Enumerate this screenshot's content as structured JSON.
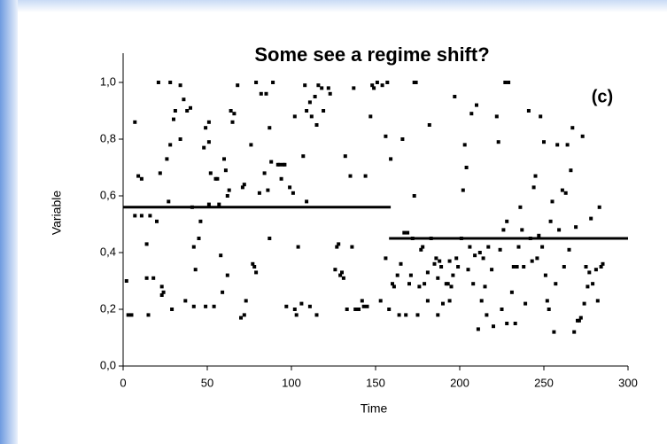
{
  "chart_data": {
    "type": "scatter",
    "title": "Some see a regime shift?",
    "annotation": "(c)",
    "x_label": "Time",
    "y_label": "Variable",
    "color": "#000000",
    "xlim": [
      0,
      300
    ],
    "ylim": [
      0,
      1.0
    ],
    "xticks": [
      0,
      50,
      100,
      150,
      200,
      250,
      300
    ],
    "yticks": [
      {
        "value": 0,
        "label": "0,0"
      },
      {
        "value": 0.2,
        "label": "0,2"
      },
      {
        "value": 0.4,
        "label": "0,4"
      },
      {
        "value": 0.6,
        "label": "0,6"
      },
      {
        "value": 0.8,
        "label": "0,8"
      },
      {
        "value": 1.0,
        "label": "1,0"
      }
    ],
    "regime_lines": [
      {
        "x": [
          0,
          159
        ],
        "y": [
          0.56,
          0.56
        ]
      },
      {
        "x": [
          158,
          300
        ],
        "y": [
          0.45,
          0.45
        ]
      }
    ],
    "x": [
      2,
      3,
      5,
      7,
      7,
      9,
      11,
      11,
      14,
      14,
      15,
      16,
      18,
      20,
      21,
      22,
      23,
      23,
      24,
      26,
      27,
      28,
      28,
      29,
      30,
      31,
      34,
      34,
      36,
      37,
      38,
      40,
      41,
      42,
      42,
      43,
      45,
      46,
      48,
      49,
      49,
      51,
      51,
      51,
      52,
      54,
      55,
      56,
      57,
      58,
      59,
      60,
      61,
      62,
      62,
      63,
      64,
      65,
      66,
      68,
      70,
      71,
      72,
      72,
      73,
      76,
      77,
      78,
      79,
      79,
      81,
      82,
      84,
      85,
      86,
      87,
      87,
      88,
      89,
      92,
      93,
      94,
      95,
      96,
      97,
      99,
      101,
      102,
      102,
      103,
      104,
      106,
      107,
      108,
      109,
      109,
      111,
      111,
      112,
      114,
      115,
      115,
      116,
      118,
      119,
      122,
      123,
      126,
      127,
      128,
      129,
      130,
      131,
      132,
      133,
      135,
      136,
      137,
      138,
      140,
      142,
      143,
      144,
      145,
      147,
      148,
      149,
      151,
      153,
      154,
      156,
      156,
      157,
      158,
      159,
      160,
      161,
      163,
      164,
      165,
      166,
      167,
      168,
      169,
      170,
      171,
      172,
      173,
      173,
      174,
      175,
      176,
      177,
      178,
      179,
      181,
      181,
      182,
      183,
      185,
      186,
      187,
      187,
      188,
      189,
      190,
      192,
      193,
      194,
      194,
      195,
      196,
      197,
      198,
      199,
      201,
      202,
      203,
      204,
      205,
      206,
      207,
      208,
      209,
      210,
      211,
      212,
      213,
      214,
      215,
      216,
      217,
      219,
      220,
      222,
      223,
      224,
      225,
      226,
      227,
      228,
      228,
      229,
      231,
      232,
      233,
      234,
      235,
      236,
      237,
      238,
      239,
      241,
      242,
      243,
      244,
      245,
      246,
      247,
      248,
      249,
      250,
      251,
      252,
      253,
      254,
      255,
      256,
      257,
      258,
      259,
      261,
      262,
      263,
      264,
      265,
      266,
      267,
      268,
      269,
      270,
      271,
      272,
      273,
      274,
      275,
      276,
      277,
      278,
      279,
      281,
      282,
      283,
      284,
      285
    ],
    "values": [
      0.3,
      0.18,
      0.18,
      0.53,
      0.86,
      0.67,
      0.66,
      0.53,
      0.31,
      0.43,
      0.18,
      0.53,
      0.31,
      0.51,
      1.0,
      0.68,
      0.28,
      0.25,
      0.26,
      0.73,
      0.58,
      1.0,
      0.78,
      0.2,
      0.87,
      0.9,
      0.99,
      0.8,
      0.94,
      0.23,
      0.9,
      0.91,
      0.56,
      0.42,
      0.21,
      0.34,
      0.45,
      0.51,
      0.77,
      0.21,
      0.84,
      0.86,
      0.57,
      0.79,
      0.68,
      0.21,
      0.66,
      0.66,
      0.57,
      0.39,
      0.26,
      0.73,
      0.69,
      0.32,
      0.6,
      0.62,
      0.9,
      0.86,
      0.89,
      0.99,
      0.17,
      0.63,
      0.18,
      0.64,
      0.23,
      0.78,
      0.36,
      0.35,
      0.33,
      1.0,
      0.61,
      0.96,
      0.68,
      0.96,
      0.62,
      0.84,
      0.45,
      0.72,
      1.0,
      0.71,
      0.71,
      0.66,
      0.71,
      0.71,
      0.21,
      0.63,
      0.61,
      0.2,
      0.88,
      0.18,
      0.42,
      0.22,
      0.74,
      0.99,
      0.9,
      0.58,
      0.93,
      0.21,
      0.88,
      0.95,
      0.18,
      0.85,
      0.99,
      0.98,
      0.9,
      0.98,
      0.96,
      0.34,
      0.42,
      0.43,
      0.32,
      0.33,
      0.31,
      0.74,
      0.2,
      0.67,
      0.42,
      0.98,
      0.2,
      0.2,
      0.23,
      0.21,
      0.67,
      0.21,
      0.88,
      0.99,
      0.98,
      1.0,
      0.23,
      0.99,
      0.81,
      0.38,
      1.0,
      0.2,
      0.73,
      0.29,
      0.28,
      0.32,
      0.18,
      0.36,
      0.8,
      0.47,
      0.18,
      0.47,
      0.29,
      0.32,
      0.45,
      0.6,
      1.0,
      1.0,
      0.18,
      0.28,
      0.41,
      0.42,
      0.29,
      0.33,
      0.23,
      0.85,
      0.45,
      0.36,
      0.38,
      0.31,
      0.18,
      0.37,
      0.35,
      0.22,
      0.29,
      0.29,
      0.37,
      0.23,
      0.28,
      0.32,
      0.95,
      0.38,
      0.35,
      0.45,
      0.62,
      0.78,
      0.7,
      0.34,
      0.42,
      0.89,
      0.29,
      0.39,
      0.92,
      0.13,
      0.4,
      0.23,
      0.38,
      0.28,
      0.18,
      0.42,
      0.34,
      0.14,
      0.88,
      0.79,
      0.41,
      0.2,
      0.48,
      1.0,
      0.15,
      0.51,
      1.0,
      0.26,
      0.35,
      0.15,
      0.35,
      0.42,
      0.56,
      0.48,
      0.35,
      0.22,
      0.9,
      0.45,
      0.37,
      0.63,
      0.67,
      0.38,
      0.46,
      0.88,
      0.42,
      0.79,
      0.32,
      0.23,
      0.2,
      0.51,
      0.58,
      0.12,
      0.29,
      0.78,
      0.48,
      0.62,
      0.35,
      0.61,
      0.78,
      0.41,
      0.69,
      0.84,
      0.12,
      0.49,
      0.16,
      0.16,
      0.17,
      0.81,
      0.22,
      0.35,
      0.28,
      0.33,
      0.52,
      0.29,
      0.34,
      0.23,
      0.56,
      0.35,
      0.36
    ]
  }
}
